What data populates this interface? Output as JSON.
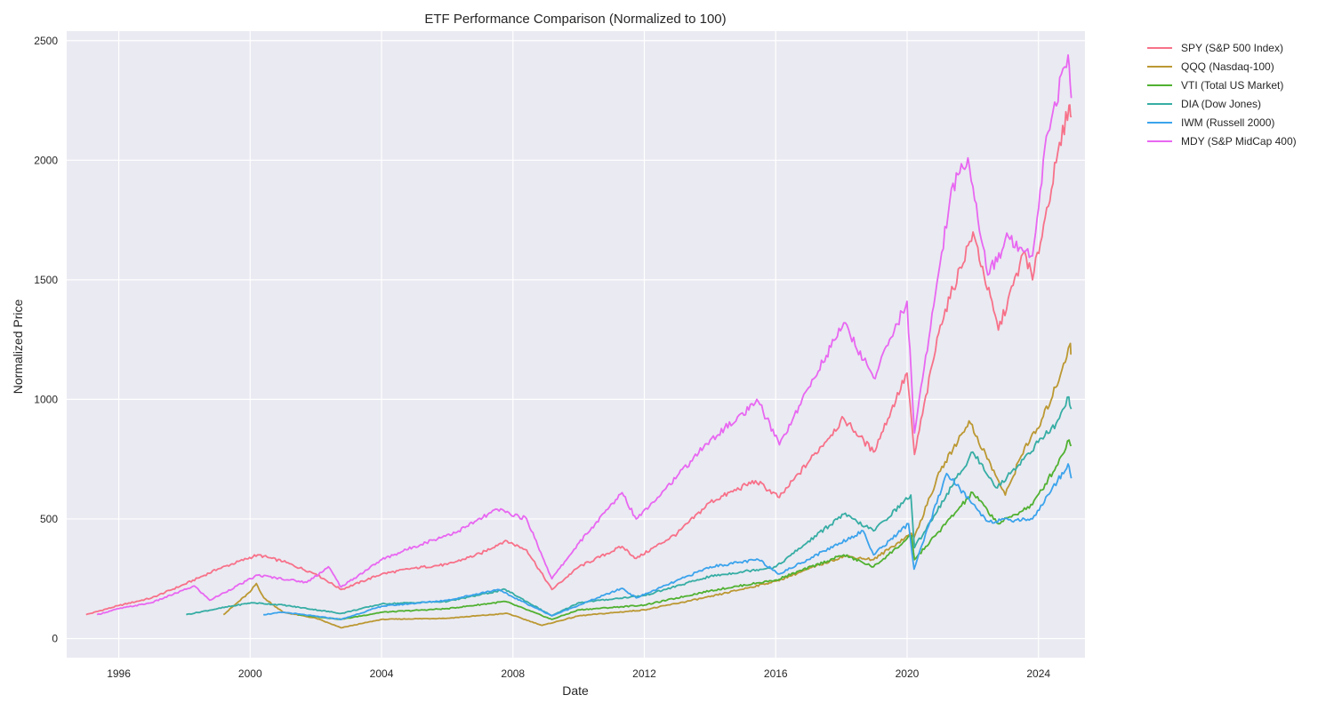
{
  "chart_data": {
    "type": "line",
    "title": "ETF Performance Comparison (Normalized to 100)",
    "xlabel": "Date",
    "ylabel": "Normalized Price",
    "xlim": [
      "1994-06-01",
      "2025-06-01"
    ],
    "ylim": [
      -80,
      2540
    ],
    "x_ticks": [
      "1996",
      "2000",
      "2004",
      "2008",
      "2012",
      "2016",
      "2020",
      "2024"
    ],
    "y_ticks": [
      0,
      500,
      1000,
      1500,
      2000,
      2500
    ],
    "grid": true,
    "background_color": "#eaeaf2",
    "legend_position": "outside-top-right",
    "series": [
      {
        "name": "SPY (S&P 500 Index)",
        "color": "#f77189",
        "points": [
          [
            "1995-01-03",
            100
          ],
          [
            "1996-01-02",
            138
          ],
          [
            "1997-01-02",
            170
          ],
          [
            "1998-01-02",
            227
          ],
          [
            "1999-01-04",
            290
          ],
          [
            "2000-03-24",
            350
          ],
          [
            "2001-01-02",
            322
          ],
          [
            "2002-01-02",
            270
          ],
          [
            "2002-10-09",
            205
          ],
          [
            "2004-01-02",
            270
          ],
          [
            "2005-01-03",
            295
          ],
          [
            "2006-01-03",
            310
          ],
          [
            "2007-01-03",
            355
          ],
          [
            "2007-10-09",
            410
          ],
          [
            "2008-06-02",
            370
          ],
          [
            "2009-03-09",
            205
          ],
          [
            "2010-01-04",
            300
          ],
          [
            "2011-04-29",
            385
          ],
          [
            "2011-10-03",
            335
          ],
          [
            "2013-01-02",
            440
          ],
          [
            "2014-01-02",
            570
          ],
          [
            "2015-05-21",
            660
          ],
          [
            "2016-02-11",
            590
          ],
          [
            "2017-01-03",
            740
          ],
          [
            "2018-01-26",
            920
          ],
          [
            "2018-12-24",
            780
          ],
          [
            "2019-12-31",
            1110
          ],
          [
            "2020-03-23",
            770
          ],
          [
            "2021-01-04",
            1310
          ],
          [
            "2022-01-03",
            1700
          ],
          [
            "2022-10-12",
            1290
          ],
          [
            "2023-07-31",
            1620
          ],
          [
            "2023-10-27",
            1500
          ],
          [
            "2024-07-16",
            1990
          ],
          [
            "2024-12-06",
            2230
          ],
          [
            "2024-12-31",
            2180
          ]
        ]
      },
      {
        "name": "QQQ (Nasdaq-100)",
        "color": "#bb9832",
        "points": [
          [
            "1999-03-10",
            100
          ],
          [
            "1999-12-31",
            195
          ],
          [
            "2000-03-10",
            230
          ],
          [
            "2000-06-01",
            170
          ],
          [
            "2001-01-02",
            110
          ],
          [
            "2002-01-02",
            85
          ],
          [
            "2002-10-09",
            45
          ],
          [
            "2004-01-02",
            80
          ],
          [
            "2006-01-03",
            85
          ],
          [
            "2007-10-31",
            105
          ],
          [
            "2008-11-20",
            55
          ],
          [
            "2010-01-04",
            95
          ],
          [
            "2012-01-03",
            120
          ],
          [
            "2014-01-02",
            175
          ],
          [
            "2016-01-04",
            240
          ],
          [
            "2018-01-26",
            345
          ],
          [
            "2018-12-24",
            330
          ],
          [
            "2020-02-19",
            440
          ],
          [
            "2020-03-16",
            420
          ],
          [
            "2021-01-04",
            700
          ],
          [
            "2021-11-19",
            910
          ],
          [
            "2022-12-28",
            600
          ],
          [
            "2023-07-31",
            800
          ],
          [
            "2024-01-02",
            880
          ],
          [
            "2024-07-10",
            1050
          ],
          [
            "2024-12-16",
            1230
          ],
          [
            "2024-12-31",
            1190
          ]
        ]
      },
      {
        "name": "VTI (Total US Market)",
        "color": "#50b131",
        "points": [
          [
            "2001-06-15",
            100
          ],
          [
            "2002-10-09",
            80
          ],
          [
            "2004-01-02",
            110
          ],
          [
            "2006-01-03",
            125
          ],
          [
            "2007-10-09",
            155
          ],
          [
            "2009-03-09",
            80
          ],
          [
            "2010-01-04",
            120
          ],
          [
            "2012-01-03",
            140
          ],
          [
            "2014-01-02",
            200
          ],
          [
            "2016-01-04",
            245
          ],
          [
            "2018-01-26",
            350
          ],
          [
            "2018-12-24",
            300
          ],
          [
            "2020-02-19",
            430
          ],
          [
            "2020-03-23",
            330
          ],
          [
            "2021-12-31",
            610
          ],
          [
            "2022-10-12",
            480
          ],
          [
            "2023-10-27",
            560
          ],
          [
            "2024-07-16",
            720
          ],
          [
            "2024-12-06",
            830
          ],
          [
            "2024-12-31",
            810
          ]
        ]
      },
      {
        "name": "DIA (Dow Jones)",
        "color": "#36ada4",
        "points": [
          [
            "1998-01-20",
            100
          ],
          [
            "1999-01-04",
            125
          ],
          [
            "2000-01-14",
            150
          ],
          [
            "2001-01-02",
            140
          ],
          [
            "2002-10-09",
            105
          ],
          [
            "2004-01-02",
            145
          ],
          [
            "2006-01-03",
            155
          ],
          [
            "2007-10-09",
            205
          ],
          [
            "2009-03-09",
            95
          ],
          [
            "2010-01-04",
            150
          ],
          [
            "2012-01-03",
            180
          ],
          [
            "2014-01-02",
            260
          ],
          [
            "2016-01-04",
            300
          ],
          [
            "2018-01-26",
            520
          ],
          [
            "2018-12-24",
            450
          ],
          [
            "2020-02-12",
            600
          ],
          [
            "2020-03-23",
            380
          ],
          [
            "2021-12-31",
            780
          ],
          [
            "2022-09-30",
            630
          ],
          [
            "2023-12-29",
            820
          ],
          [
            "2024-07-16",
            900
          ],
          [
            "2024-12-04",
            1010
          ],
          [
            "2024-12-31",
            960
          ]
        ]
      },
      {
        "name": "IWM (Russell 2000)",
        "color": "#3ba3ec",
        "points": [
          [
            "2000-05-26",
            100
          ],
          [
            "2001-01-02",
            110
          ],
          [
            "2002-10-09",
            80
          ],
          [
            "2004-01-02",
            135
          ],
          [
            "2006-01-03",
            160
          ],
          [
            "2007-07-13",
            205
          ],
          [
            "2009-03-09",
            95
          ],
          [
            "2010-01-04",
            140
          ],
          [
            "2011-04-29",
            210
          ],
          [
            "2011-10-03",
            170
          ],
          [
            "2014-01-02",
            300
          ],
          [
            "2015-06-23",
            330
          ],
          [
            "2016-02-11",
            270
          ],
          [
            "2018-08-31",
            450
          ],
          [
            "2018-12-24",
            350
          ],
          [
            "2020-01-17",
            480
          ],
          [
            "2020-03-18",
            290
          ],
          [
            "2021-03-15",
            690
          ],
          [
            "2022-06-16",
            490
          ],
          [
            "2023-10-27",
            500
          ],
          [
            "2024-07-31",
            660
          ],
          [
            "2024-11-25",
            730
          ],
          [
            "2024-12-31",
            670
          ]
        ]
      },
      {
        "name": "MDY (S&P MidCap 400)",
        "color": "#e867f1",
        "points": [
          [
            "1995-05-04",
            100
          ],
          [
            "1996-01-02",
            125
          ],
          [
            "1997-01-02",
            150
          ],
          [
            "1998-04-21",
            220
          ],
          [
            "1998-10-08",
            160
          ],
          [
            "2000-03-24",
            265
          ],
          [
            "2001-09-21",
            235
          ],
          [
            "2002-05-20",
            300
          ],
          [
            "2002-10-09",
            215
          ],
          [
            "2004-01-02",
            330
          ],
          [
            "2005-01-03",
            385
          ],
          [
            "2006-05-05",
            450
          ],
          [
            "2007-07-13",
            540
          ],
          [
            "2008-06-02",
            500
          ],
          [
            "2009-03-09",
            250
          ],
          [
            "2010-01-04",
            400
          ],
          [
            "2011-04-29",
            610
          ],
          [
            "2011-10-03",
            500
          ],
          [
            "2013-01-02",
            680
          ],
          [
            "2014-01-02",
            830
          ],
          [
            "2015-06-23",
            990
          ],
          [
            "2016-02-11",
            810
          ],
          [
            "2017-01-03",
            1050
          ],
          [
            "2018-01-26",
            1320
          ],
          [
            "2018-12-24",
            1090
          ],
          [
            "2019-12-31",
            1410
          ],
          [
            "2020-03-23",
            860
          ],
          [
            "2021-05-07",
            1880
          ],
          [
            "2021-11-08",
            2010
          ],
          [
            "2022-06-16",
            1520
          ],
          [
            "2023-01-31",
            1680
          ],
          [
            "2023-10-27",
            1600
          ],
          [
            "2024-03-28",
            2100
          ],
          [
            "2024-11-25",
            2440
          ],
          [
            "2024-12-31",
            2260
          ]
        ]
      }
    ]
  }
}
